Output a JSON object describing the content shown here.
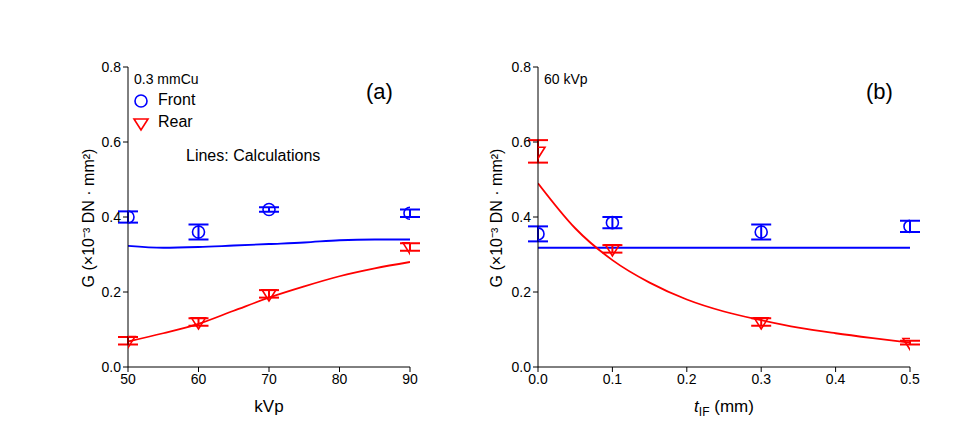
{
  "chart_data": [
    {
      "type": "scatter",
      "panel_label": "(a)",
      "annotation": "0.3 mmCu",
      "legend": "upper left",
      "legend_note": "Lines: Calculations",
      "xlabel": {
        "main": "kVp"
      },
      "ylabel": "G (×10⁻³ DN · mm²)",
      "xlim": [
        50,
        90
      ],
      "xticks": [
        50,
        60,
        70,
        80,
        90
      ],
      "ylim": [
        0,
        0.8
      ],
      "yticks": [
        {
          "value": 0,
          "label": "0.0"
        },
        0.2,
        0.4,
        0.6,
        0.8
      ],
      "grid": false,
      "series": [
        {
          "name": "Front",
          "type": "scatter",
          "color": "#0000ff",
          "marker": "circle",
          "x": [
            50,
            60,
            70,
            90
          ],
          "values": [
            0.4,
            0.36,
            0.42,
            0.41
          ],
          "errors": [
            0.015,
            0.02,
            0.006,
            0.01
          ]
        },
        {
          "name": "Rear",
          "type": "scatter",
          "color": "#ff0000",
          "marker": "triangle_down",
          "x": [
            50,
            60,
            70,
            90
          ],
          "values": [
            0.07,
            0.12,
            0.195,
            0.32
          ],
          "errors": [
            0.01,
            0.01,
            0.01,
            0.01
          ]
        },
        {
          "type": "line",
          "color": "#0000ff",
          "line_style": "solid",
          "x": [
            50,
            55,
            60,
            65,
            70,
            75,
            80,
            85,
            90
          ],
          "values": [
            0.323,
            0.318,
            0.32,
            0.324,
            0.328,
            0.332,
            0.338,
            0.34,
            0.34
          ]
        },
        {
          "type": "line",
          "color": "#ff0000",
          "line_style": "solid",
          "x": [
            50,
            55,
            60,
            65,
            70,
            75,
            80,
            85,
            90
          ],
          "values": [
            0.068,
            0.09,
            0.115,
            0.15,
            0.185,
            0.215,
            0.242,
            0.263,
            0.28
          ]
        }
      ]
    },
    {
      "type": "scatter",
      "panel_label": "(b)",
      "annotation": "60 kVp",
      "xlabel": {
        "main": "t",
        "sub": "IF",
        "rest": " (mm)"
      },
      "ylabel": "G (×10⁻³ DN · mm²)",
      "xlim": [
        0,
        0.5
      ],
      "xticks": [
        {
          "value": 0,
          "label": "0.0"
        },
        0.1,
        0.2,
        0.3,
        0.4,
        0.5
      ],
      "ylim": [
        0,
        0.8
      ],
      "yticks": [
        {
          "value": 0,
          "label": "0.0"
        },
        0.2,
        0.4,
        0.6,
        0.8
      ],
      "grid": false,
      "series": [
        {
          "type": "scatter",
          "color": "#0000ff",
          "marker": "circle",
          "x": [
            0,
            0.1,
            0.3,
            0.5
          ],
          "values": [
            0.355,
            0.385,
            0.36,
            0.375
          ],
          "errors": [
            0.02,
            0.015,
            0.02,
            0.015
          ]
        },
        {
          "type": "scatter",
          "color": "#ff0000",
          "marker": "triangle_down",
          "x": [
            0,
            0.1,
            0.3,
            0.5
          ],
          "values": [
            0.575,
            0.315,
            0.12,
            0.065
          ],
          "errors": [
            0.03,
            0.01,
            0.01,
            0.005
          ]
        },
        {
          "type": "line",
          "color": "#0000ff",
          "line_style": "solid",
          "x": [
            0,
            0.5
          ],
          "values": [
            0.318,
            0.318
          ]
        },
        {
          "type": "line",
          "color": "#ff0000",
          "line_style": "solid",
          "x": [
            0,
            0.05,
            0.1,
            0.15,
            0.2,
            0.25,
            0.3,
            0.35,
            0.4,
            0.45,
            0.5
          ],
          "values": [
            0.49,
            0.37,
            0.285,
            0.225,
            0.18,
            0.148,
            0.125,
            0.105,
            0.09,
            0.077,
            0.065
          ]
        }
      ]
    }
  ]
}
